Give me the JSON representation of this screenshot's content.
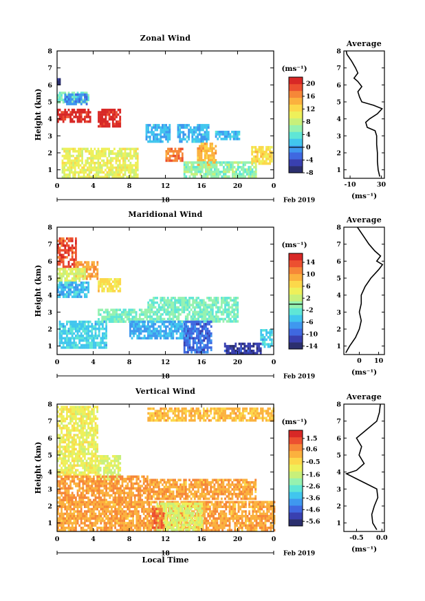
{
  "colors": {
    "scale": [
      "#2b2f6e",
      "#3940b0",
      "#3f68e0",
      "#3f98ef",
      "#41c6ee",
      "#5fe6d6",
      "#96f2b0",
      "#c8f07a",
      "#eef05a",
      "#fcd84a",
      "#fbb13e",
      "#f68738",
      "#ec5030",
      "#d82826"
    ]
  },
  "charts": [
    {
      "title": "Zonal Wind",
      "ylabel": "Height (km)",
      "xlabel": "",
      "day_label": "18",
      "month_label": "Feb 2019",
      "unit_label": "(ms⁻¹)",
      "cbar": {
        "min": -8,
        "max": 22,
        "ticks": [
          "20",
          "16",
          "12",
          "8",
          "4",
          "0",
          "-4",
          "-8"
        ],
        "tick_values": [
          20,
          16,
          12,
          8,
          4,
          0,
          -4,
          -8
        ],
        "zero": 0
      },
      "avg_title": "Average",
      "avg_xlabel": "(ms⁻¹)",
      "avg_xticks": [
        "-10",
        "30"
      ],
      "avg_xtick_values": [
        -10,
        30
      ],
      "avg_xlim": [
        -18,
        34
      ]
    },
    {
      "title": "Maridional Wind",
      "ylabel": "Height (km)",
      "xlabel": "",
      "day_label": "18",
      "month_label": "Feb 2019",
      "unit_label": "(ms⁻¹)",
      "cbar": {
        "min": -15,
        "max": 17,
        "ticks": [
          "14",
          "10",
          "6",
          "2",
          "-2",
          "-6",
          "-10",
          "-14"
        ],
        "tick_values": [
          14,
          10,
          6,
          2,
          -2,
          -6,
          -10,
          -14
        ],
        "zero": 0
      },
      "avg_title": "Average",
      "avg_xlabel": "(ms⁻¹)",
      "avg_xticks": [
        "0",
        "10"
      ],
      "avg_xtick_values": [
        0,
        10
      ],
      "avg_xlim": [
        -8,
        13
      ]
    },
    {
      "title": "Vertical Wind",
      "ylabel": "Height (km)",
      "xlabel": "Local Time",
      "day_label": "18",
      "month_label": "Feb 2019",
      "unit_label": "(ms⁻¹)",
      "cbar": {
        "min": -6.0,
        "max": 2.2,
        "ticks": [
          "1.5",
          "0.6",
          "-0.5",
          "-1.6",
          "-2.6",
          "-3.6",
          "-4.6",
          "-5.6"
        ],
        "tick_values": [
          1.5,
          0.6,
          -0.5,
          -1.6,
          -2.6,
          -3.6,
          -4.6,
          -5.6
        ],
        "zero": null
      },
      "avg_title": "Average",
      "avg_xlabel": "(ms⁻¹)",
      "avg_xticks": [
        "-0.5",
        "0.0"
      ],
      "avg_xtick_values": [
        -0.5,
        0.0
      ],
      "avg_xlim": [
        -0.75,
        0.05
      ]
    }
  ],
  "chart_data": [
    {
      "type": "heatmap",
      "title": "Zonal Wind",
      "ylabel": "Height (km)",
      "xlim": [
        0,
        24
      ],
      "ylim": [
        0.5,
        8
      ],
      "xticks": [
        "0",
        "4",
        "8",
        "12",
        "16",
        "20",
        "0"
      ],
      "yticks": [
        "1",
        "2",
        "3",
        "4",
        "5",
        "6",
        "7",
        "8"
      ],
      "regions": [
        {
          "x": [
            0.0,
            0.3
          ],
          "y": [
            6.0,
            6.4
          ],
          "value": -7
        },
        {
          "x": [
            0.0,
            3.5
          ],
          "y": [
            5.0,
            5.6
          ],
          "value": 5
        },
        {
          "x": [
            0.8,
            3.3
          ],
          "y": [
            4.9,
            5.5
          ],
          "value": -1
        },
        {
          "x": [
            0.0,
            3.7
          ],
          "y": [
            3.9,
            4.6
          ],
          "value": 21
        },
        {
          "x": [
            4.5,
            6.9
          ],
          "y": [
            3.6,
            4.6
          ],
          "value": 21
        },
        {
          "x": [
            9.8,
            12.5
          ],
          "y": [
            2.7,
            3.7
          ],
          "value": 1
        },
        {
          "x": [
            13.3,
            16.8
          ],
          "y": [
            2.7,
            3.7
          ],
          "value": 1
        },
        {
          "x": [
            17.5,
            20.2
          ],
          "y": [
            2.8,
            3.3
          ],
          "value": 1
        },
        {
          "x": [
            0.5,
            9.0
          ],
          "y": [
            0.6,
            2.3
          ],
          "value": 10
        },
        {
          "x": [
            12.0,
            13.8
          ],
          "y": [
            1.5,
            2.3
          ],
          "value": 17
        },
        {
          "x": [
            15.5,
            17.5
          ],
          "y": [
            1.3,
            2.6
          ],
          "value": 14
        },
        {
          "x": [
            14.0,
            22.0
          ],
          "y": [
            0.6,
            1.5
          ],
          "value": 6
        },
        {
          "x": [
            21.5,
            23.8
          ],
          "y": [
            1.3,
            2.4
          ],
          "value": 12
        }
      ],
      "average_profile": {
        "height": [
          0.6,
          1.0,
          1.5,
          2.0,
          2.5,
          3.0,
          3.3,
          3.5,
          3.8,
          4.0,
          4.3,
          4.6,
          4.8,
          5.0,
          5.3,
          5.6,
          5.9,
          6.2,
          6.4,
          6.7,
          7.0,
          7.4,
          7.8,
          8.0
        ],
        "value": [
          28,
          26,
          25,
          25,
          24,
          24,
          22,
          12,
          10,
          15,
          25,
          31,
          20,
          5,
          2,
          0,
          5,
          0,
          -5,
          0,
          -3,
          -8,
          -14,
          -15
        ]
      }
    },
    {
      "type": "heatmap",
      "title": "Maridional Wind",
      "ylabel": "Height (km)",
      "xlim": [
        0,
        24
      ],
      "ylim": [
        0.5,
        8
      ],
      "xticks": [
        "0",
        "4",
        "8",
        "12",
        "16",
        "20",
        "0"
      ],
      "yticks": [
        "1",
        "2",
        "3",
        "4",
        "5",
        "6",
        "7",
        "8"
      ],
      "regions": [
        {
          "x": [
            0.0,
            2.0
          ],
          "y": [
            5.6,
            7.4
          ],
          "value": 14
        },
        {
          "x": [
            2.0,
            4.5
          ],
          "y": [
            5.0,
            6.0
          ],
          "value": 10
        },
        {
          "x": [
            4.5,
            7.0
          ],
          "y": [
            4.3,
            5.0
          ],
          "value": 6
        },
        {
          "x": [
            0.0,
            3.0
          ],
          "y": [
            4.8,
            5.6
          ],
          "value": 3
        },
        {
          "x": [
            0.0,
            3.5
          ],
          "y": [
            3.9,
            4.8
          ],
          "value": -5
        },
        {
          "x": [
            4.5,
            10.0
          ],
          "y": [
            2.5,
            3.2
          ],
          "value": -1
        },
        {
          "x": [
            10.0,
            20.0
          ],
          "y": [
            2.5,
            3.9
          ],
          "value": -1
        },
        {
          "x": [
            0.2,
            5.5
          ],
          "y": [
            0.9,
            2.5
          ],
          "value": -4
        },
        {
          "x": [
            8.0,
            14.0
          ],
          "y": [
            1.5,
            2.5
          ],
          "value": -6
        },
        {
          "x": [
            14.0,
            17.0
          ],
          "y": [
            0.6,
            2.5
          ],
          "value": -9
        },
        {
          "x": [
            18.5,
            22.5
          ],
          "y": [
            0.6,
            1.2
          ],
          "value": -12
        },
        {
          "x": [
            22.5,
            23.8
          ],
          "y": [
            1.0,
            2.0
          ],
          "value": -4
        }
      ],
      "average_profile": {
        "height": [
          0.6,
          1.0,
          1.5,
          2.0,
          2.5,
          3.0,
          3.5,
          4.0,
          4.5,
          5.0,
          5.5,
          5.8,
          6.0,
          6.3,
          6.6,
          7.0,
          7.5,
          8.0
        ],
        "value": [
          -7,
          -5,
          -2,
          0,
          1,
          0,
          1,
          1,
          3,
          6,
          10,
          12,
          9,
          11,
          8,
          5,
          2,
          -1
        ]
      }
    },
    {
      "type": "heatmap",
      "title": "Vertical Wind",
      "ylabel": "Height (km)",
      "xlabel": "Local Time",
      "xlim": [
        0,
        24
      ],
      "ylim": [
        0.5,
        8
      ],
      "xticks": [
        "0",
        "4",
        "8",
        "12",
        "16",
        "20",
        "0"
      ],
      "yticks": [
        "1",
        "2",
        "3",
        "4",
        "5",
        "6",
        "7",
        "8"
      ],
      "regions": [
        {
          "x": [
            0.0,
            4.5
          ],
          "y": [
            3.9,
            7.9
          ],
          "value": -1.0
        },
        {
          "x": [
            4.5,
            7.0
          ],
          "y": [
            3.6,
            5.0
          ],
          "value": -1.3
        },
        {
          "x": [
            0.0,
            10.0
          ],
          "y": [
            2.2,
            3.8
          ],
          "value": 0.5
        },
        {
          "x": [
            10.0,
            22.0
          ],
          "y": [
            2.4,
            3.6
          ],
          "value": 0.3
        },
        {
          "x": [
            0.0,
            24.0
          ],
          "y": [
            0.6,
            2.3
          ],
          "value": 0.3
        },
        {
          "x": [
            11.0,
            16.0
          ],
          "y": [
            0.6,
            2.2
          ],
          "value": -1.3
        },
        {
          "x": [
            10.5,
            11.8
          ],
          "y": [
            0.7,
            1.9
          ],
          "value": 1.0
        },
        {
          "x": [
            10.0,
            24.0
          ],
          "y": [
            7.0,
            7.8
          ],
          "value": 0.0
        }
      ],
      "average_profile": {
        "height": [
          0.6,
          1.0,
          1.5,
          2.0,
          2.5,
          3.0,
          3.3,
          3.6,
          3.9,
          4.1,
          4.5,
          5.0,
          5.5,
          6.0,
          6.5,
          7.0,
          7.5,
          8.0
        ],
        "value": [
          -0.1,
          -0.18,
          -0.2,
          -0.15,
          -0.08,
          -0.1,
          -0.3,
          -0.5,
          -0.7,
          -0.5,
          -0.35,
          -0.45,
          -0.4,
          -0.5,
          -0.3,
          -0.1,
          -0.05,
          -0.03
        ]
      }
    }
  ]
}
